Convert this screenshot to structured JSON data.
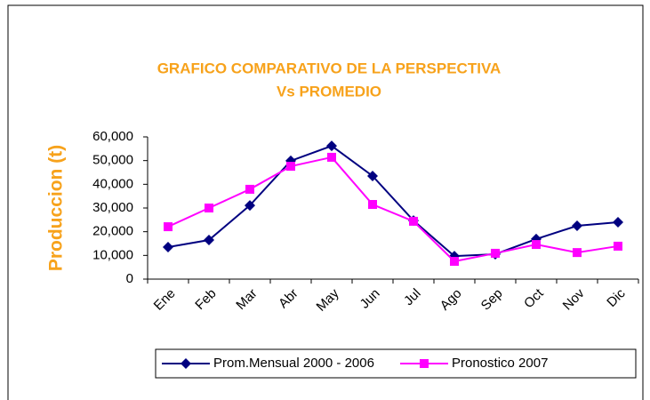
{
  "chart_data": {
    "type": "line",
    "title": [
      "GRAFICO COMPARATIVO DE LA PERSPECTIVA",
      "Vs PROMEDIO"
    ],
    "y_label": "Produccion (t)",
    "categories": [
      "Ene",
      "Feb",
      "Mar",
      "Abr",
      "May",
      "Jun",
      "Jul",
      "Ago",
      "Sep",
      "Oct",
      "Nov",
      "Dic"
    ],
    "series": [
      {
        "name": "Prom.Mensual 2000 - 2006",
        "color": "#000080",
        "marker": "diamond",
        "values": [
          13500,
          16500,
          31100,
          49900,
          56200,
          43500,
          24700,
          9700,
          10500,
          16900,
          22500,
          24000
        ]
      },
      {
        "name": "Pronostico 2007",
        "color": "#ff00ff",
        "marker": "square",
        "values": [
          22100,
          30000,
          37900,
          47600,
          51400,
          31500,
          24400,
          7500,
          10900,
          14600,
          11200,
          13900
        ]
      }
    ],
    "ylim": [
      0,
      60000
    ],
    "yticks": [
      0,
      {
        "value": 10000,
        "label": "10,000"
      },
      {
        "value": 20000,
        "label": "20,000"
      },
      {
        "value": 30000,
        "label": "30,000"
      },
      {
        "value": 40000,
        "label": "40,000"
      },
      {
        "value": 50000,
        "label": "50,000"
      },
      {
        "value": 60000,
        "label": "60,000"
      }
    ],
    "legend": "bottom"
  }
}
